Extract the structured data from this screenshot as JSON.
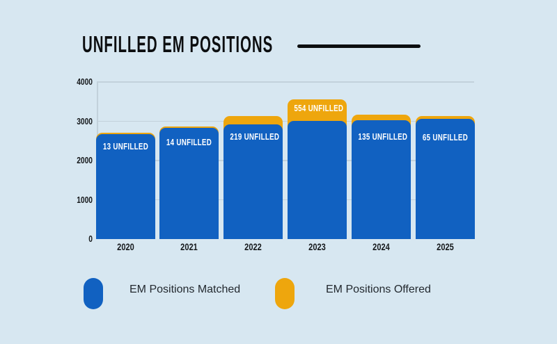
{
  "title": {
    "text": "UNFILLED EM POSITIONS"
  },
  "legend": {
    "items": [
      {
        "label": "EM Positions Matched",
        "color": "#1161C1"
      },
      {
        "label": "EM Positions Offered",
        "color": "#EEA60D"
      }
    ]
  },
  "colors": {
    "background": "#D7E7F1",
    "bar_blue": "#1161C1",
    "bar_yellow": "#EEA60D",
    "gridline": "#C2D1DB",
    "text_dark": "#0c0e10",
    "bar_label_text": "#FFFFFF"
  },
  "chart_data": {
    "type": "bar",
    "stacked": true,
    "title": "UNFILLED EM POSITIONS",
    "categories": [
      "2020",
      "2021",
      "2022",
      "2023",
      "2024",
      "2025"
    ],
    "series": [
      {
        "name": "EM Positions Matched",
        "color": "#1161C1",
        "values": [
          2665,
          2826,
          2921,
          3010,
          3026,
          3068
        ]
      },
      {
        "name": "EM Positions Offered",
        "color": "#EEA60D",
        "values": [
          13,
          14,
          219,
          554,
          135,
          65
        ]
      }
    ],
    "bar_labels": [
      "13 UNFILLED",
      "14 UNFILLED",
      "219 UNFILLED",
      "554 UNFILLED",
      "135 UNFILLED",
      "65 UNFILLED"
    ],
    "xlabel": "",
    "ylabel": "",
    "ylim": [
      0,
      4000
    ],
    "yticks": [
      0,
      1000,
      2000,
      3000,
      4000
    ],
    "grid": true,
    "legend_position": "bottom"
  }
}
